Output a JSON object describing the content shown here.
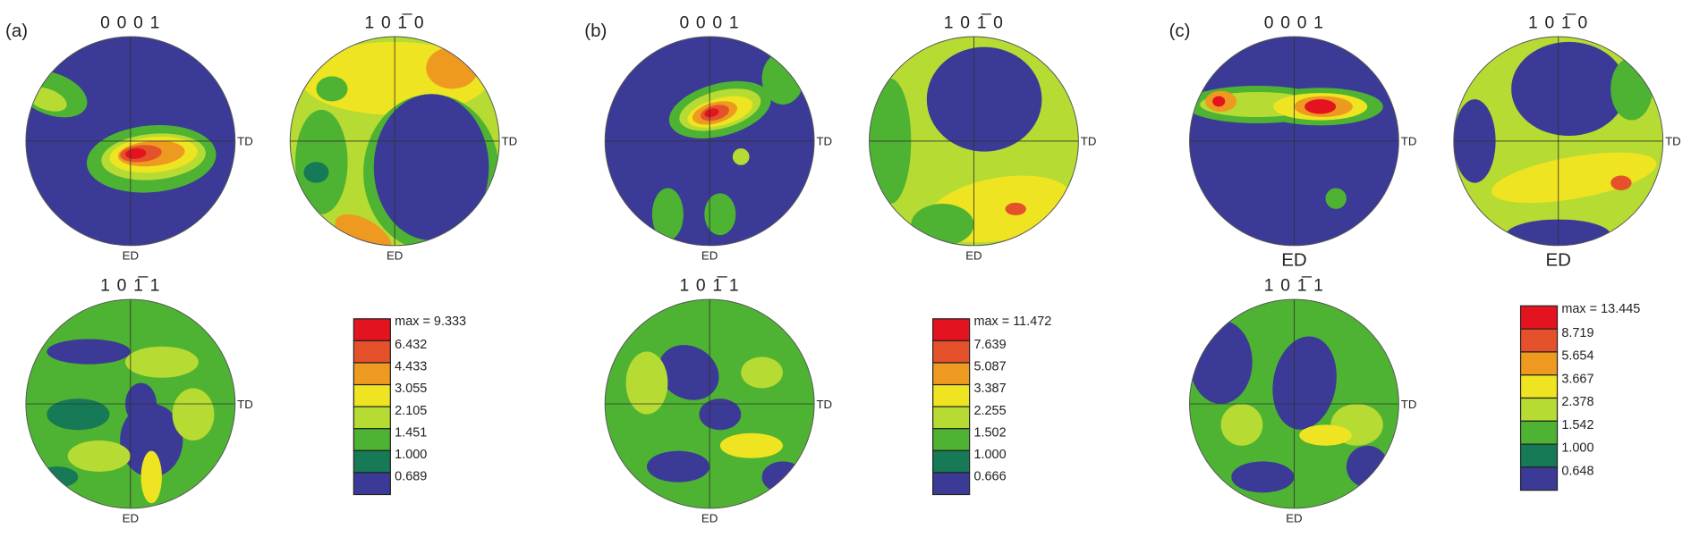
{
  "panels": [
    {
      "label": "(a)",
      "pole_figures": [
        {
          "title": "0 0 0 1",
          "side_label": "TD",
          "bottom_label": "ED"
        },
        {
          "title": "1 0 1̅ 0",
          "side_label": "TD",
          "bottom_label": "ED"
        },
        {
          "title": "1 0 1̅ 1",
          "side_label": "TD",
          "bottom_label": "ED"
        }
      ],
      "legend": {
        "max_label": "max = 9.333",
        "levels": [
          "6.432",
          "4.433",
          "3.055",
          "2.105",
          "1.451",
          "1.000",
          "0.689"
        ]
      }
    },
    {
      "label": "(b)",
      "pole_figures": [
        {
          "title": "0 0 0 1",
          "side_label": "TD",
          "bottom_label": "ED"
        },
        {
          "title": "1 0 1̅ 0",
          "side_label": "TD",
          "bottom_label": "ED"
        },
        {
          "title": "1 0 1̅ 1",
          "side_label": "TD",
          "bottom_label": "ED"
        }
      ],
      "legend": {
        "max_label": "max = 11.472",
        "levels": [
          "7.639",
          "5.087",
          "3.387",
          "2.255",
          "1.502",
          "1.000",
          "0.666"
        ]
      }
    },
    {
      "label": "(c)",
      "pole_figures": [
        {
          "title": "0 0 0 1",
          "side_label": "TD",
          "bottom_label": "ED"
        },
        {
          "title": "1 0 1̅ 0",
          "side_label": "TD",
          "bottom_label": "ED"
        },
        {
          "title": "1 0 1̅ 1",
          "side_label": "TD",
          "bottom_label": "ED"
        }
      ],
      "legend": {
        "max_label": "max = 13.445",
        "levels": [
          "8.719",
          "5.654",
          "3.667",
          "2.378",
          "1.542",
          "1.000",
          "0.648"
        ]
      }
    }
  ],
  "legend_colors": [
    "#e3131f",
    "#e4512a",
    "#ee9a20",
    "#efe421",
    "#b6db33",
    "#4eb332",
    "#157a55",
    "#3b3a96"
  ]
}
